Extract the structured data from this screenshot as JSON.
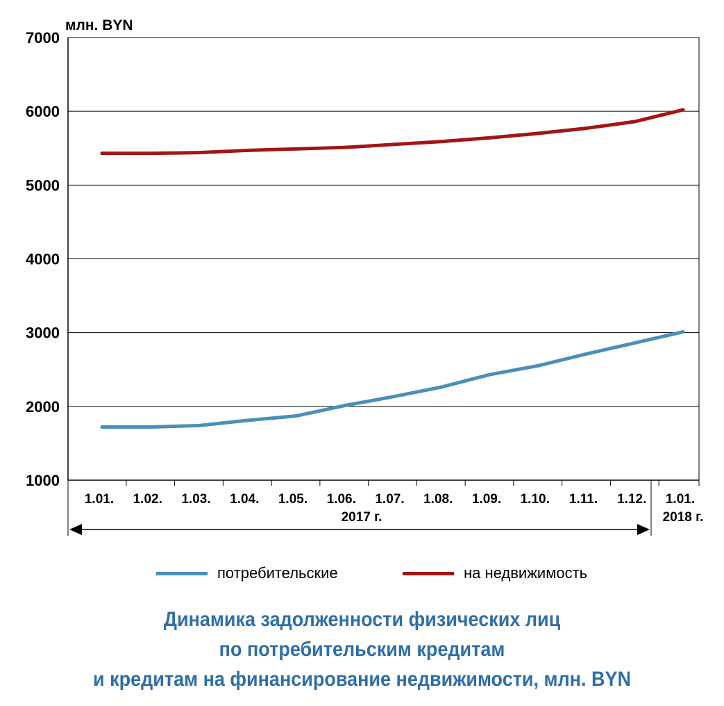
{
  "chart_data": {
    "type": "line",
    "unit_label": "млн. BYN",
    "x": [
      "1.01.",
      "1.02.",
      "1.03.",
      "1.04.",
      "1.05.",
      "1.06.",
      "1.07.",
      "1.08.",
      "1.09.",
      "1.10.",
      "1.11.",
      "1.12.",
      "1.01."
    ],
    "year_labels": {
      "main": "2017 г.",
      "last": "2018 г."
    },
    "ylim": [
      1000,
      7000
    ],
    "yticks": [
      1000,
      2000,
      3000,
      4000,
      5000,
      6000,
      7000
    ],
    "grid": true,
    "legend_position": "bottom",
    "series": [
      {
        "name": "потребительские",
        "color": "#4a90b8",
        "values": [
          1720,
          1720,
          1740,
          1810,
          1870,
          2010,
          2130,
          2260,
          2430,
          2550,
          2710,
          2860,
          3010
        ]
      },
      {
        "name": "на недвижимость",
        "color": "#a31515",
        "values": [
          5430,
          5430,
          5440,
          5470,
          5490,
          5510,
          5550,
          5590,
          5640,
          5700,
          5770,
          5860,
          6020
        ]
      }
    ],
    "title_lines": [
      "Динамика задолженности физических лиц",
      "по потребительским кредитам",
      "и кредитам на финансирование недвижимости, млн. BYN"
    ]
  }
}
